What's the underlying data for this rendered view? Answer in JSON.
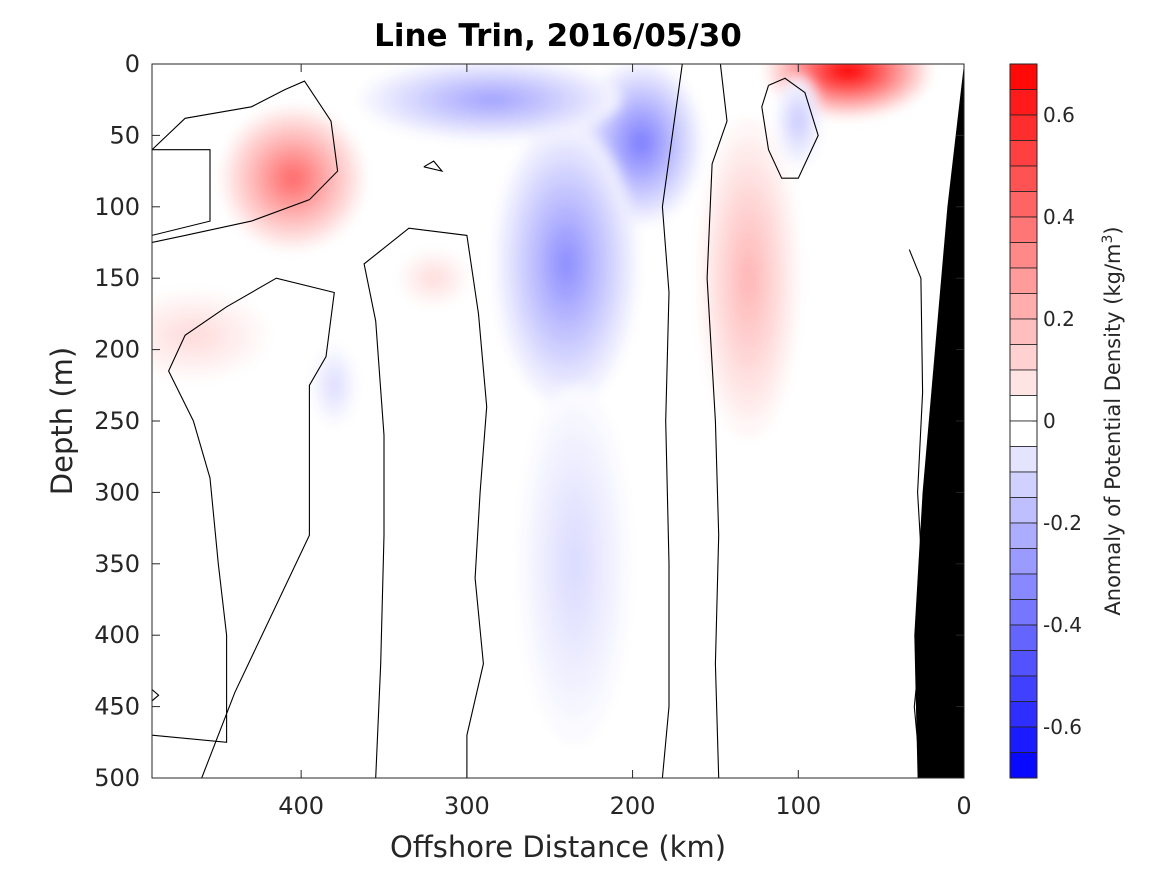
{
  "chart_data": {
    "type": "heatmap",
    "title": "Line Trin, 2016/05/30",
    "xlabel": "Offshore Distance (km)",
    "ylabel": "Depth (m)",
    "xlim": [
      490,
      0
    ],
    "ylim": [
      0,
      500
    ],
    "x_ticks": [
      400,
      300,
      200,
      100,
      0
    ],
    "x_tick_labels": [
      "400",
      "300",
      "200",
      "100",
      "0"
    ],
    "y_ticks": [
      0,
      50,
      100,
      150,
      200,
      250,
      300,
      350,
      400,
      450,
      500
    ],
    "y_tick_labels": [
      "0",
      "50",
      "100",
      "150",
      "200",
      "250",
      "300",
      "350",
      "400",
      "450",
      "500"
    ],
    "colorbar": {
      "label": "Anomaly of Potential Density (kg/m",
      "label_sup": "3",
      "label_close": ")",
      "range": [
        -0.7,
        0.7
      ],
      "step": 0.05,
      "ticks": [
        0.6,
        0.4,
        0.2,
        0,
        -0.2,
        -0.4,
        -0.6
      ],
      "tick_labels": [
        "0.6",
        "0.4",
        "0.2",
        "0",
        "-0.2",
        "-0.4",
        "-0.6"
      ]
    },
    "zero_contour": true,
    "features": [
      {
        "sign": "positive",
        "x_km": 405,
        "depth_m": 80,
        "peak": 0.4
      },
      {
        "sign": "positive",
        "x_km": 465,
        "depth_m": 190,
        "peak": 0.1
      },
      {
        "sign": "positive",
        "x_km": 320,
        "depth_m": 150,
        "peak": 0.1
      },
      {
        "sign": "positive",
        "x_km": 70,
        "depth_m": 5,
        "peak": 0.7
      },
      {
        "sign": "positive",
        "x_km": 130,
        "depth_m": 150,
        "peak": 0.2
      },
      {
        "sign": "negative",
        "x_km": 195,
        "depth_m": 55,
        "peak": -0.35
      },
      {
        "sign": "negative",
        "x_km": 240,
        "depth_m": 140,
        "peak": -0.3
      },
      {
        "sign": "negative",
        "x_km": 235,
        "depth_m": 350,
        "peak": -0.1
      },
      {
        "sign": "negative",
        "x_km": 285,
        "depth_m": 25,
        "peak": -0.25
      },
      {
        "sign": "negative",
        "x_km": 100,
        "depth_m": 40,
        "peak": -0.15
      },
      {
        "sign": "negative",
        "x_km": 380,
        "depth_m": 225,
        "peak": -0.1
      }
    ],
    "colors": {
      "positive": "#ff0000",
      "negative": "#0000ff",
      "zero": "#ffffff",
      "bathymetry": "#000000"
    }
  }
}
